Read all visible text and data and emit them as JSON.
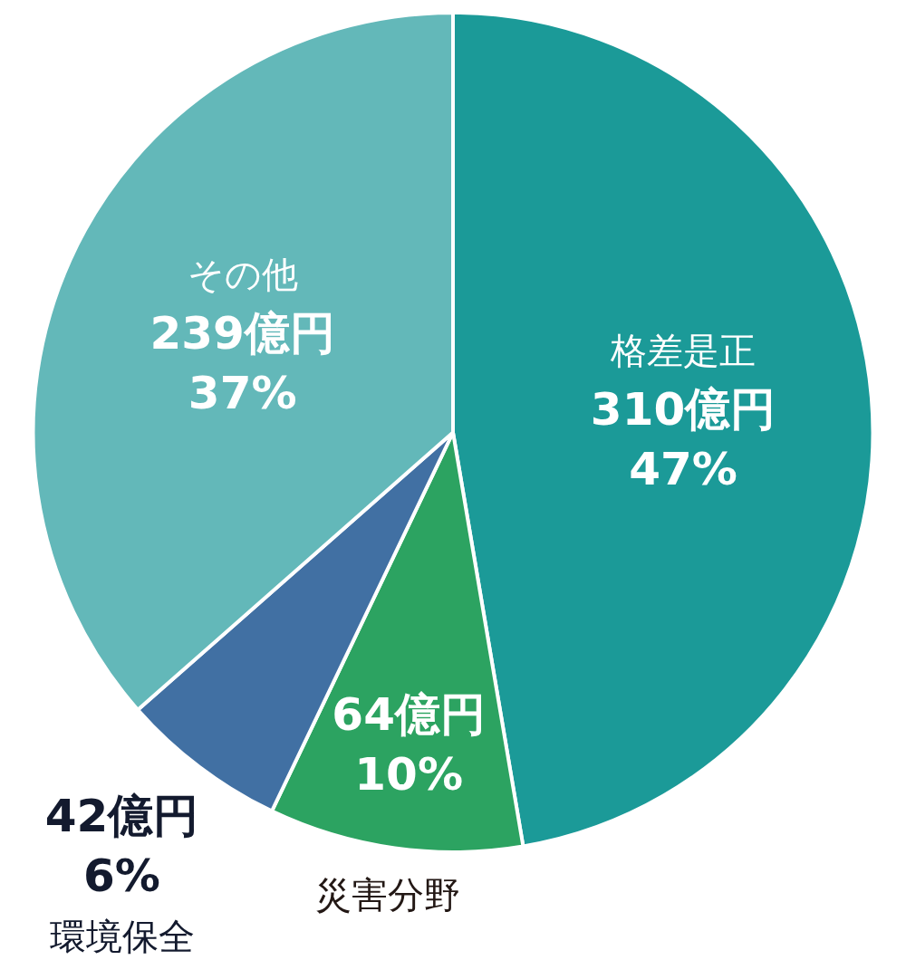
{
  "chart_data": {
    "type": "pie",
    "categories": [
      "格差是正",
      "災害分野",
      "環境保全",
      "その他"
    ],
    "values": [
      310,
      64,
      42,
      239
    ],
    "colors": [
      "#1b9a98",
      "#2ca361",
      "#4170a3",
      "#63b8b9"
    ],
    "value_labels": [
      "310億円 47%",
      "64億円 10%",
      "42億円 6%",
      "239億円 37%"
    ],
    "legend": false
  }
}
